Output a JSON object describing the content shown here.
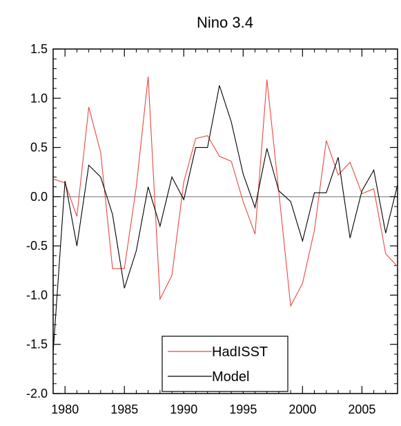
{
  "chart_data": {
    "type": "line",
    "title": "Nino 3.4",
    "xlabel": "",
    "ylabel": "",
    "xlim": [
      1979,
      2008
    ],
    "ylim": [
      -2.0,
      1.5
    ],
    "x_ticks": [
      1980,
      1985,
      1990,
      1995,
      2000,
      2005
    ],
    "y_ticks": [
      -2.0,
      -1.5,
      -1.0,
      -0.5,
      0.0,
      0.5,
      1.0,
      1.5
    ],
    "y_tick_labels": [
      "-2.0",
      "-1.5",
      "-1.0",
      "-0.5",
      "0.0",
      "0.5",
      "1.0",
      "1.5"
    ],
    "reference_line": 0.0,
    "grid": false,
    "legend_position": "bottom-center",
    "x": [
      1979,
      1980,
      1981,
      1982,
      1983,
      1984,
      1985,
      1986,
      1987,
      1988,
      1989,
      1990,
      1991,
      1992,
      1993,
      1994,
      1995,
      1996,
      1997,
      1998,
      1999,
      2000,
      2001,
      2002,
      2003,
      2004,
      2005,
      2006,
      2007,
      2008
    ],
    "series": [
      {
        "name": "HadISST",
        "color": "#e8473f",
        "values": [
          0.18,
          0.14,
          -0.2,
          0.91,
          0.45,
          -0.73,
          -0.73,
          0.1,
          1.22,
          -1.04,
          -0.8,
          0.15,
          0.59,
          0.62,
          0.41,
          0.36,
          -0.05,
          -0.38,
          1.19,
          0.05,
          -1.11,
          -0.88,
          -0.34,
          0.57,
          0.22,
          0.35,
          0.03,
          0.08,
          -0.58,
          -0.71
        ]
      },
      {
        "name": "Model",
        "color": "#000000",
        "values": [
          -1.58,
          0.16,
          -0.5,
          0.32,
          0.2,
          -0.18,
          -0.93,
          -0.55,
          0.1,
          -0.3,
          0.2,
          -0.03,
          0.5,
          0.5,
          1.13,
          0.76,
          0.23,
          -0.11,
          0.49,
          0.06,
          -0.05,
          -0.45,
          0.04,
          0.04,
          0.4,
          -0.42,
          0.06,
          0.27,
          -0.37,
          0.12
        ]
      }
    ]
  }
}
